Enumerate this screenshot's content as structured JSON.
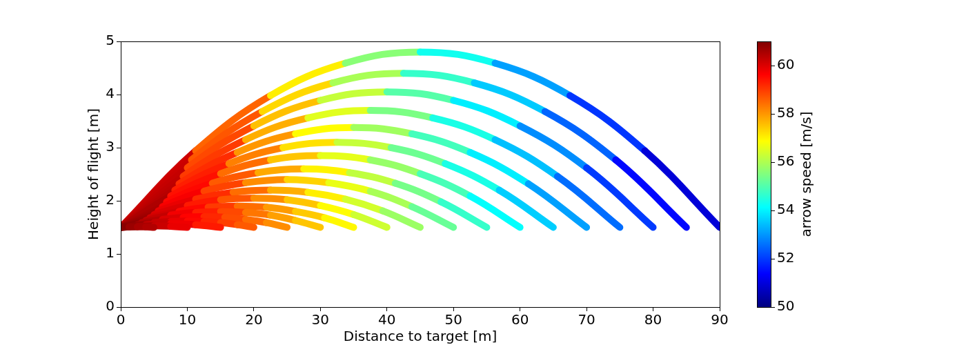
{
  "chart_data": {
    "type": "line",
    "xlabel": "Distance to target [m]",
    "ylabel": "Height of flight [m]",
    "xlim": [
      0,
      90
    ],
    "xticks": [
      0,
      10,
      20,
      30,
      40,
      50,
      60,
      70,
      80,
      90
    ],
    "ylim": [
      0,
      5
    ],
    "yticks": [
      0,
      1,
      2,
      3,
      4,
      5
    ],
    "grid": false,
    "colorbar": {
      "label": "arrow speed [m/s]",
      "range": [
        50,
        61
      ],
      "ticks": [
        50,
        52,
        54,
        56,
        58,
        60
      ]
    },
    "series": [
      {
        "x": [
          0,
          1.25,
          2.5,
          3.75,
          5
        ],
        "y": [
          1.5,
          1.51,
          1.51,
          1.51,
          1.5
        ],
        "speed": [
          61.0,
          60.8,
          60.6,
          60.5,
          60.4
        ]
      },
      {
        "x": [
          0,
          2.5,
          5,
          7.5,
          10
        ],
        "y": [
          1.5,
          1.52,
          1.53,
          1.52,
          1.5
        ],
        "speed": [
          61.0,
          60.7,
          60.4,
          60.0,
          59.7
        ]
      },
      {
        "x": [
          0,
          3.75,
          7.5,
          11.25,
          15
        ],
        "y": [
          1.5,
          1.55,
          1.57,
          1.55,
          1.5
        ],
        "speed": [
          61.0,
          60.5,
          60.0,
          59.6,
          59.1
        ]
      },
      {
        "x": [
          0,
          2.5,
          5,
          7.5,
          10,
          12.5,
          15,
          17.5,
          20
        ],
        "y": [
          1.5,
          1.55,
          1.59,
          1.61,
          1.62,
          1.61,
          1.59,
          1.55,
          1.5
        ],
        "speed": [
          61.0,
          60.7,
          60.4,
          60.0,
          59.7,
          59.4,
          59.1,
          58.8,
          58.5
        ]
      },
      {
        "x": [
          0,
          3.125,
          6.25,
          9.375,
          12.5,
          15.625,
          18.75,
          21.875,
          25
        ],
        "y": [
          1.5,
          1.59,
          1.65,
          1.69,
          1.7,
          1.69,
          1.65,
          1.59,
          1.5
        ],
        "speed": [
          61.0,
          60.6,
          60.2,
          59.8,
          59.4,
          59.0,
          58.6,
          58.3,
          57.9
        ]
      },
      {
        "x": [
          0,
          3.75,
          7.5,
          11.25,
          15,
          18.75,
          22.5,
          26.25,
          30
        ],
        "y": [
          1.5,
          1.63,
          1.73,
          1.78,
          1.8,
          1.78,
          1.73,
          1.63,
          1.5
        ],
        "speed": [
          61.0,
          60.5,
          60.0,
          59.5,
          59.1,
          58.6,
          58.1,
          57.7,
          57.3
        ]
      },
      {
        "x": [
          0,
          4.375,
          8.75,
          13.125,
          17.5,
          21.875,
          26.25,
          30.625,
          35
        ],
        "y": [
          1.5,
          1.68,
          1.8,
          1.88,
          1.9,
          1.88,
          1.8,
          1.68,
          1.5
        ],
        "speed": [
          61.0,
          60.4,
          59.8,
          59.3,
          58.7,
          58.2,
          57.7,
          57.2,
          56.7
        ]
      },
      {
        "x": [
          0,
          5,
          10,
          15,
          20,
          25,
          30,
          35,
          40
        ],
        "y": [
          1.5,
          1.74,
          1.91,
          2.02,
          2.05,
          2.02,
          1.91,
          1.74,
          1.5
        ],
        "speed": [
          61.0,
          60.3,
          59.7,
          59.0,
          58.4,
          57.8,
          57.2,
          56.6,
          56.1
        ]
      },
      {
        "x": [
          0,
          5.625,
          11.25,
          16.875,
          22.5,
          28.125,
          33.75,
          39.375,
          45
        ],
        "y": [
          1.5,
          1.81,
          2.03,
          2.16,
          2.2,
          2.16,
          2.03,
          1.81,
          1.5
        ],
        "speed": [
          61.0,
          60.2,
          59.5,
          58.8,
          58.1,
          57.4,
          56.7,
          56.1,
          55.5
        ]
      },
      {
        "x": [
          0,
          6.25,
          12.5,
          18.75,
          25,
          31.25,
          37.5,
          43.75,
          50
        ],
        "y": [
          1.5,
          1.89,
          2.18,
          2.34,
          2.4,
          2.34,
          2.18,
          1.89,
          1.5
        ],
        "speed": [
          61.0,
          60.1,
          59.3,
          58.5,
          57.7,
          57.0,
          56.3,
          55.6,
          54.9
        ]
      },
      {
        "x": [
          0,
          6.875,
          13.75,
          20.625,
          27.5,
          34.375,
          41.25,
          48.125,
          55
        ],
        "y": [
          1.5,
          1.98,
          2.33,
          2.53,
          2.6,
          2.53,
          2.33,
          1.98,
          1.5
        ],
        "speed": [
          61.0,
          60.0,
          59.1,
          58.2,
          57.4,
          56.6,
          55.8,
          55.0,
          54.4
        ]
      },
      {
        "x": [
          0,
          7.5,
          15,
          22.5,
          30,
          37.5,
          45,
          52.5,
          60
        ],
        "y": [
          1.5,
          2.09,
          2.51,
          2.77,
          2.85,
          2.77,
          2.51,
          2.09,
          1.5
        ],
        "speed": [
          61.0,
          60.0,
          58.9,
          58.0,
          57.0,
          56.2,
          55.3,
          54.5,
          53.8
        ]
      },
      {
        "x": [
          0,
          8.125,
          16.25,
          24.375,
          32.5,
          40.625,
          48.75,
          56.875,
          65
        ],
        "y": [
          1.5,
          2.2,
          2.7,
          3.0,
          3.1,
          3.0,
          2.7,
          2.2,
          1.5
        ],
        "speed": [
          61.0,
          59.8,
          58.8,
          57.7,
          56.7,
          55.8,
          54.8,
          54.0,
          53.2
        ]
      },
      {
        "x": [
          0,
          8.75,
          17.5,
          26.25,
          35,
          43.75,
          52.5,
          61.25,
          70
        ],
        "y": [
          1.5,
          2.32,
          2.91,
          3.26,
          3.38,
          3.26,
          2.91,
          2.32,
          1.5
        ],
        "speed": [
          61.0,
          59.7,
          58.6,
          57.4,
          56.4,
          55.3,
          54.4,
          53.5,
          52.7
        ]
      },
      {
        "x": [
          0,
          9.375,
          18.75,
          28.125,
          37.5,
          46.875,
          56.25,
          65.625,
          75
        ],
        "y": [
          1.5,
          2.46,
          3.15,
          3.56,
          3.7,
          3.56,
          3.15,
          2.46,
          1.5
        ],
        "speed": [
          61.0,
          59.6,
          58.4,
          57.1,
          56.0,
          54.9,
          53.9,
          53.0,
          52.1
        ]
      },
      {
        "x": [
          0,
          10,
          20,
          30,
          40,
          50,
          60,
          70,
          80
        ],
        "y": [
          1.5,
          2.62,
          3.41,
          3.89,
          4.05,
          3.89,
          3.41,
          2.62,
          1.5
        ],
        "speed": [
          61.0,
          59.5,
          58.2,
          56.9,
          55.6,
          54.5,
          53.4,
          52.4,
          51.6
        ]
      },
      {
        "x": [
          0,
          10.625,
          21.25,
          31.875,
          42.5,
          53.125,
          63.75,
          74.375,
          85
        ],
        "y": [
          1.5,
          2.77,
          3.68,
          4.22,
          4.4,
          4.22,
          3.68,
          2.77,
          1.5
        ],
        "speed": [
          61.0,
          59.4,
          58.0,
          56.6,
          55.3,
          54.1,
          53.0,
          51.9,
          51.0
        ]
      },
      {
        "x": [
          0,
          11.25,
          22.5,
          33.75,
          45,
          56.25,
          67.5,
          78.75,
          90
        ],
        "y": [
          1.5,
          2.94,
          3.98,
          4.59,
          4.8,
          4.59,
          3.98,
          2.94,
          1.5
        ],
        "speed": [
          61.0,
          59.3,
          57.8,
          56.3,
          54.9,
          53.7,
          52.5,
          51.4,
          50.5
        ]
      }
    ]
  }
}
